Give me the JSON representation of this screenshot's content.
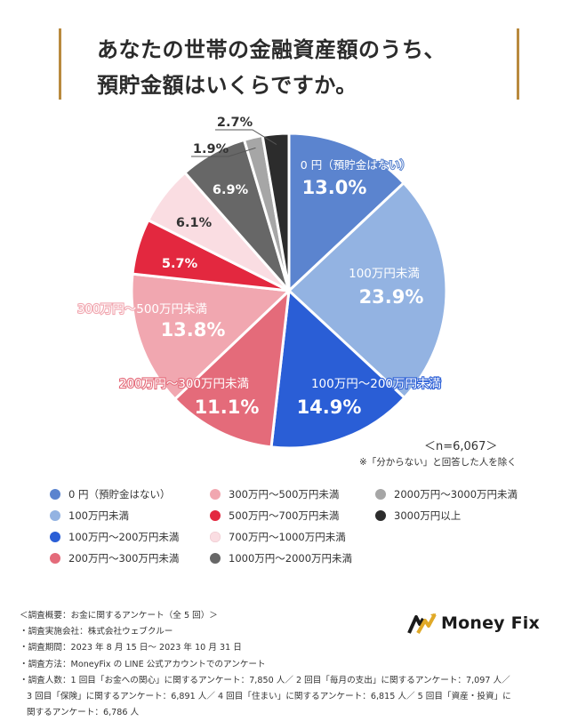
{
  "title": {
    "line1": "あなたの世帯の金融資産額のうち、",
    "line2": "預貯金額はいくらですか。"
  },
  "chart_data": {
    "type": "pie",
    "unit": "%",
    "start_angle_deg": 0,
    "direction": "clockwise",
    "slices": [
      {
        "label": "0 円（預貯金はない）",
        "value": 13.0,
        "color": "#5b84cf",
        "value_text": "13.0%",
        "label_color": "#ffffff",
        "value_color": "#ffffff"
      },
      {
        "label": "100万円未満",
        "value": 23.9,
        "color": "#93b3e2",
        "value_text": "23.9%",
        "label_color": "#ffffff",
        "value_color": "#ffffff"
      },
      {
        "label": "100万円～200万円未満",
        "value": 14.9,
        "color": "#2a5ed6",
        "value_text": "14.9%",
        "label_color": "#ffffff",
        "value_color": "#ffffff"
      },
      {
        "label": "200万円～300万円未満",
        "value": 11.1,
        "color": "#e46b7a",
        "value_text": "11.1%",
        "label_color": "#ffffff",
        "value_color": "#ffffff"
      },
      {
        "label": "300万円～500万円未満",
        "value": 13.8,
        "color": "#f1a7b0",
        "value_text": "13.8%",
        "label_color": "#ffffff",
        "value_color": "#ffffff"
      },
      {
        "label": "500万円～700万円未満",
        "value": 5.7,
        "color": "#e3283f",
        "value_text": "5.7%",
        "label_color": "#ffffff",
        "value_color": "#ffffff"
      },
      {
        "label": "700万円～1000万円未満",
        "value": 6.1,
        "color": "#fadde2",
        "value_text": "6.1%",
        "label_color": "#333333",
        "value_color": "#333333"
      },
      {
        "label": "1000万円～2000万円未満",
        "value": 6.9,
        "color": "#676767",
        "value_text": "6.9%",
        "label_color": "#ffffff",
        "value_color": "#ffffff"
      },
      {
        "label": "2000万円～3000万円未満",
        "value": 1.9,
        "color": "#a6a6a6",
        "value_text": "1.9%",
        "label_color": "#333333",
        "value_color": "#333333"
      },
      {
        "label": "3000万円以上",
        "value": 2.7,
        "color": "#2c2c2c",
        "value_text": "2.7%",
        "label_color": "#333333",
        "value_color": "#333333"
      }
    ]
  },
  "notes": {
    "sample": "＜n=6,067＞",
    "exclusion": "※「分からない」と回答した人を除く"
  },
  "legend": [
    {
      "label": "0 円（預貯金はない）",
      "color": "#5b84cf"
    },
    {
      "label": "100万円未満",
      "color": "#93b3e2"
    },
    {
      "label": "100万円～200万円未満",
      "color": "#2a5ed6"
    },
    {
      "label": "200万円～300万円未満",
      "color": "#e46b7a"
    },
    {
      "label": "300万円～500万円未満",
      "color": "#f1a7b0"
    },
    {
      "label": "500万円～700万円未満",
      "color": "#e3283f"
    },
    {
      "label": "700万円～1000万円未満",
      "color": "#fadde2"
    },
    {
      "label": "1000万円～2000万円未満",
      "color": "#676767"
    },
    {
      "label": "2000万円～3000万円未満",
      "color": "#a6a6a6"
    },
    {
      "label": "3000万円以上",
      "color": "#2c2c2c"
    }
  ],
  "survey": {
    "heading": "＜調査概要：お金に関するアンケート（全 5 回）＞",
    "lines": [
      "・調査実施会社：株式会社ウェブクルー",
      "・調査期間：2023 年 8 月 15 日～ 2023 年 10 月 31 日",
      "・調査方法：MoneyFix の LINE 公式アカウントでのアンケート",
      "・調査人数：1 回目「お金への関心」に関するアンケート：7,850 人／ 2 回目「毎月の支出」に関するアンケート：7,097 人／",
      "3 回目「保険」に関するアンケート：6,891 人／ 4 回目「住まい」に関するアンケート：6,815 人／ 5 回目「資産・投資」に",
      "関するアンケート：6,786 人"
    ]
  },
  "logo": {
    "text": "Money Fix",
    "icon": "money-fix-logo-icon",
    "colors": {
      "gold": "#e0a928",
      "dark": "#1b1b1b"
    }
  }
}
